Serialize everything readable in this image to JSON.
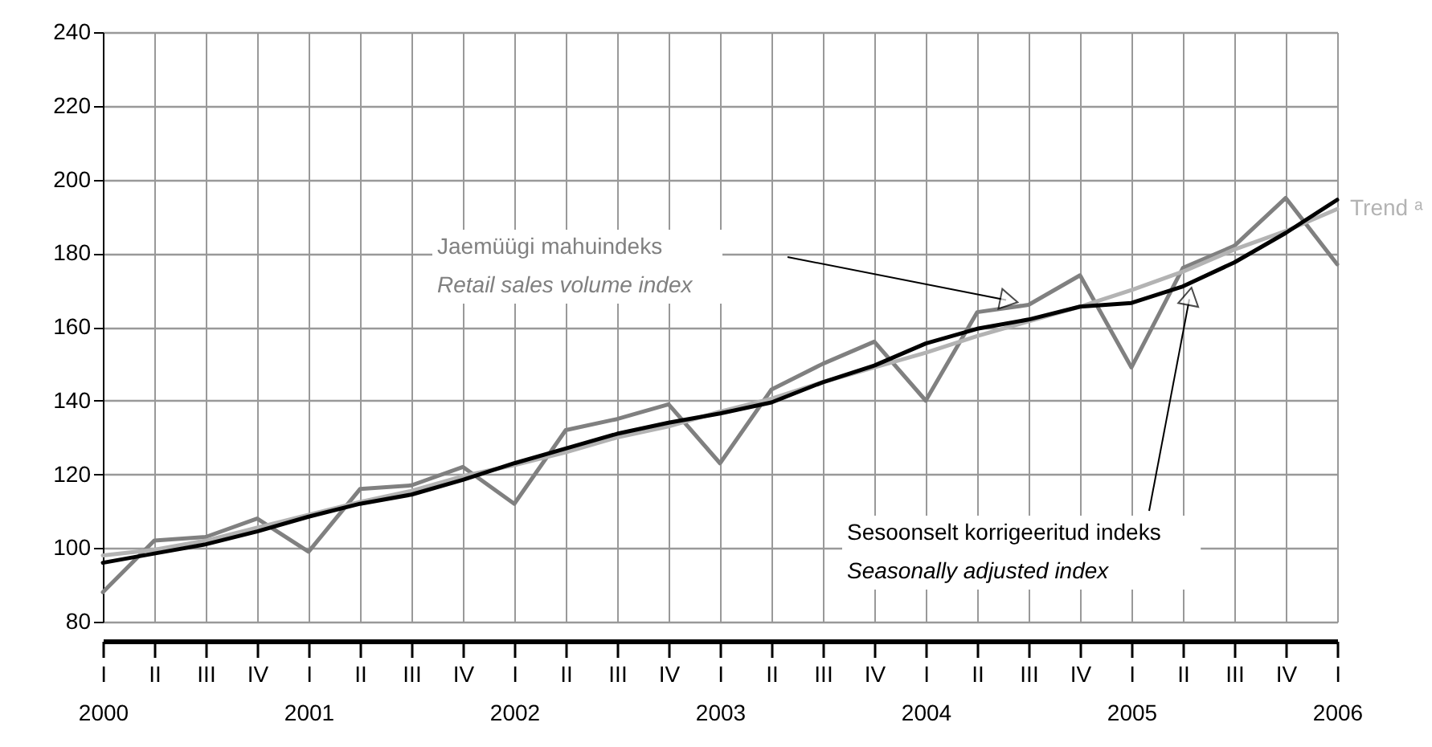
{
  "chart_data": {
    "type": "line",
    "categories": [
      "I\n2000",
      "II",
      "III",
      "IV",
      "I\n2001",
      "II",
      "III",
      "IV",
      "I\n2002",
      "II",
      "III",
      "IV",
      "I\n2003",
      "II",
      "III",
      "IV",
      "I\n2004",
      "II",
      "III",
      "IV",
      "I\n2005",
      "II",
      "III",
      "IV",
      "I\n2006"
    ],
    "series": [
      {
        "name": "Jaemüügi mahuindeks\nRetail sales volume index",
        "color": "#808080",
        "values": [
          88,
          102,
          103,
          108,
          99,
          116,
          117,
          122,
          112,
          132,
          135,
          139,
          123,
          143,
          150,
          156,
          140,
          164,
          166,
          174,
          149,
          176,
          182,
          195,
          177
        ]
      },
      {
        "name": "Trend ᵃ",
        "color": "#b3b3b3",
        "values": [
          98,
          99.5,
          102,
          105.5,
          109,
          112.5,
          115.5,
          119.5,
          122.5,
          126,
          130,
          133,
          137,
          140.5,
          145,
          149,
          153,
          157.5,
          161.5,
          165.5,
          170,
          175,
          181,
          186,
          192
        ]
      },
      {
        "name": "Sesoonselt korrigeeritud indeks\nSeasonally adjusted index",
        "color": "#000000",
        "values": [
          96,
          98.5,
          101,
          104.5,
          108.5,
          112,
          114.5,
          118.5,
          123,
          127,
          131,
          134,
          136.5,
          139.5,
          145,
          149.5,
          155.5,
          159.5,
          162,
          165.5,
          166.5,
          171,
          177.5,
          185.5,
          194.5
        ]
      }
    ],
    "ylim": [
      80,
      240
    ],
    "yticks": [
      80,
      100,
      120,
      140,
      160,
      180,
      200,
      220,
      240
    ],
    "grid": true,
    "legend": false,
    "line_style": "solid",
    "marker": "none"
  }
}
